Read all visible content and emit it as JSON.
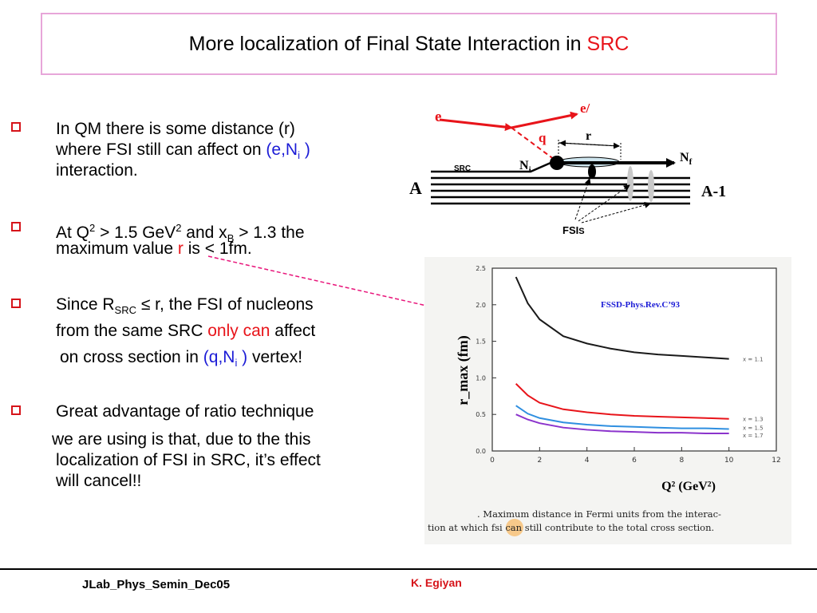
{
  "slide": {
    "title": {
      "prefix": "More localization of Final State Interaction in ",
      "highlight": "SRC"
    },
    "bullets": {
      "b1": {
        "l1": "In QM there is some distance (r)",
        "l2a": "where FSI still can affect on ",
        "l2b": "(e,N",
        "l2c": "i",
        "l2d": " )",
        "l3": "interaction."
      },
      "b2": {
        "l1a": "At Q",
        "l1b": "2",
        "l1c": " > 1.5 GeV",
        "l1d": "2",
        "l1e": " and x",
        "l1f": "B",
        "l1g": " > 1.3 the",
        "l2a": "maximum value ",
        "l2b": "r",
        "l2c": " is < 1fm."
      },
      "b3": {
        "l1a": "Since R",
        "l1b": "SRC",
        "l1c": " ≤ r, the FSI of nucleons",
        "l2a": "from the same SRC ",
        "l2b": "only can",
        "l2c": " affect",
        "l3a": "on cross section in ",
        "l3b": "(q,N",
        "l3c": "i",
        "l3d": " )",
        "l3e": " vertex!"
      },
      "b4": {
        "l1": "Great advantage of ratio technique",
        "l2": "we are using is that, due to the this",
        "l3": "localization of FSI in SRC, it’s effect",
        "l4": "will cancel!!"
      }
    },
    "diagram": {
      "e": "e",
      "e_prime": "e/",
      "q": "q",
      "r": "r",
      "Ni_main": "N",
      "Ni_sub": "i",
      "Nf_main": "N",
      "Nf_sub": "f",
      "A": "A",
      "A_minus_1": "A-1",
      "SRC": "SRC",
      "FSIs_main": "FSI",
      "FSIs_sub": "S"
    },
    "footer": {
      "left": "JLab_Phys_Semin_Dec05",
      "author": "K. Egiyan"
    }
  },
  "chart_data": {
    "type": "line",
    "title": "",
    "annotation": "FSSD-Phys.Rev.C’93",
    "xlabel": "Q² (GeV²)",
    "ylabel": "r_max (fm)",
    "xlim": [
      0,
      12
    ],
    "ylim": [
      0.0,
      2.5
    ],
    "x_ticks": [
      "0",
      "2",
      "4",
      "6",
      "8",
      "10",
      "12"
    ],
    "y_ticks": [
      "0.0",
      "0.5",
      "1.0",
      "1.5",
      "2.0",
      "2.5"
    ],
    "series": [
      {
        "name": "x = 1.1",
        "color": "#1a1a1a",
        "x": [
          1.0,
          1.5,
          2,
          3,
          4,
          5,
          6,
          7,
          8,
          9,
          10
        ],
        "y": [
          2.38,
          2.02,
          1.8,
          1.57,
          1.47,
          1.4,
          1.35,
          1.32,
          1.3,
          1.28,
          1.26
        ]
      },
      {
        "name": "x = 1.3",
        "color": "#e8141a",
        "x": [
          1.0,
          1.5,
          2,
          3,
          4,
          5,
          6,
          7,
          8,
          9,
          10
        ],
        "y": [
          0.92,
          0.76,
          0.66,
          0.57,
          0.53,
          0.5,
          0.48,
          0.47,
          0.46,
          0.45,
          0.44
        ]
      },
      {
        "name": "x = 1.5",
        "color": "#2f8fe0",
        "x": [
          1.0,
          1.5,
          2,
          3,
          4,
          5,
          6,
          7,
          8,
          9,
          10
        ],
        "y": [
          0.62,
          0.51,
          0.45,
          0.39,
          0.36,
          0.34,
          0.33,
          0.32,
          0.31,
          0.31,
          0.3
        ]
      },
      {
        "name": "x = 1.7",
        "color": "#8b33cc",
        "x": [
          1.0,
          1.5,
          2,
          3,
          4,
          5,
          6,
          7,
          8,
          9,
          10
        ],
        "y": [
          0.5,
          0.43,
          0.38,
          0.32,
          0.29,
          0.27,
          0.26,
          0.25,
          0.25,
          0.24,
          0.24
        ]
      }
    ],
    "caption_l1": ". Maximum distance in Fermi units from the interac-",
    "caption_l2a": "tion at which ",
    "caption_l2b": "fsi",
    "caption_l2c": " can still contribute to the total cross section."
  }
}
